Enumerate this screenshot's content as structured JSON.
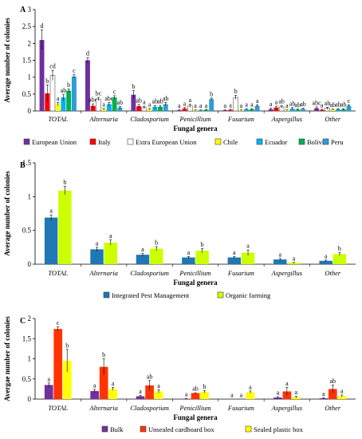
{
  "figure": {
    "y_axis_label": "Average number of colonies",
    "x_axis_label": "Fungal genera"
  },
  "chart_data": [
    {
      "panel": "A",
      "type": "bar",
      "categories": [
        "TOTAL",
        "Alternaria",
        "Cladosporium",
        "Penicillium",
        "Fusarium",
        "Aspergillus",
        "Other"
      ],
      "ylabel": "Average number of colonies",
      "xlabel": "Fungal genera",
      "ylim": [
        0,
        3
      ],
      "yticks": [
        0,
        0.5,
        1,
        1.5,
        2,
        2.5,
        3
      ],
      "legend_position": "bottom",
      "series": [
        {
          "name": "European Union",
          "color": "#7030a0",
          "values": [
            2.1,
            1.5,
            0.48,
            0.02,
            0.02,
            0.05,
            0.08
          ],
          "errors": [
            0.3,
            0.08,
            0.12,
            0.01,
            0.01,
            0.03,
            0.04
          ],
          "letters": [
            "d",
            "d",
            "b",
            "a",
            "a",
            "a",
            "abc"
          ]
        },
        {
          "name": "Italy",
          "color": "#ff0000",
          "values": [
            0.52,
            0.15,
            0.14,
            0.07,
            0.03,
            0.1,
            0.03
          ],
          "errors": [
            0.25,
            0.06,
            0.05,
            0.03,
            0.02,
            0.04,
            0.02
          ],
          "letters": [
            "b",
            "abc",
            "ab",
            "a",
            "a",
            "a",
            "a"
          ]
        },
        {
          "name": "Extra European Union",
          "color": "#ffffff",
          "values": [
            1.05,
            0.35,
            0.1,
            0.15,
            0.4,
            0.12,
            0.08
          ],
          "errors": [
            0.15,
            0.05,
            0.04,
            0.05,
            0.06,
            0.04,
            0.03
          ],
          "letters": [
            "cd",
            "bc",
            "a",
            "a",
            "b",
            "ab",
            "ab"
          ]
        },
        {
          "name": "Chile",
          "color": "#ffff00",
          "values": [
            0.2,
            0.05,
            0.05,
            0.02,
            0.02,
            0.02,
            0.04
          ],
          "errors": [
            0.05,
            0.02,
            0.02,
            0.01,
            0.01,
            0.01,
            0.02
          ],
          "letters": [
            "a",
            "a",
            "a",
            "a",
            "a",
            "a",
            "ab"
          ]
        },
        {
          "name": "Ecuador",
          "color": "#00b0f0",
          "values": [
            0.4,
            0.2,
            0.12,
            0.02,
            0.05,
            0.07,
            0.05
          ],
          "errors": [
            0.08,
            0.05,
            0.04,
            0.01,
            0.02,
            0.03,
            0.02
          ],
          "letters": [
            "ab",
            "abc",
            "ab",
            "a",
            "a",
            "ab",
            "ab"
          ]
        },
        {
          "name": "Bolivia",
          "color": "#00b050",
          "values": [
            0.6,
            0.4,
            0.12,
            0.03,
            0.05,
            0.04,
            0.05
          ],
          "errors": [
            0.05,
            0.05,
            0.04,
            0.01,
            0.02,
            0.02,
            0.02
          ],
          "letters": [
            "b",
            "c",
            "ab",
            "a",
            "a",
            "ab",
            "ab"
          ]
        },
        {
          "name": "Peru",
          "color": "#2e9cd6",
          "values": [
            1.02,
            0.1,
            0.2,
            0.35,
            0.15,
            0.06,
            0.15
          ],
          "errors": [
            0.05,
            0.03,
            0.05,
            0.03,
            0.03,
            0.02,
            0.03
          ],
          "letters": [
            "c",
            "ab",
            "ab",
            "b",
            "a",
            "ab",
            "c"
          ]
        }
      ]
    },
    {
      "panel": "B",
      "type": "bar",
      "categories": [
        "TOTAL",
        "Alternaria",
        "Cladosporium",
        "Penicillium",
        "Fusarium",
        "Aspergillus",
        "Other"
      ],
      "ylabel": "Average number of colonies",
      "xlabel": "Fungal genera",
      "ylim": [
        0,
        1.5
      ],
      "yticks": [
        0,
        0.5,
        1,
        1.5
      ],
      "legend_position": "bottom",
      "series": [
        {
          "name": "Integrated Pest Management",
          "color": "#1f77b4",
          "values": [
            0.69,
            0.22,
            0.14,
            0.1,
            0.1,
            0.07,
            0.05
          ],
          "errors": [
            0.04,
            0.03,
            0.02,
            0.015,
            0.015,
            0.015,
            0.01
          ],
          "letters": [
            "a",
            "a",
            "a",
            "a",
            "a",
            "a",
            "a"
          ]
        },
        {
          "name": "Organic farming",
          "color": "#ccff00",
          "values": [
            1.09,
            0.32,
            0.23,
            0.2,
            0.17,
            0.02,
            0.15
          ],
          "errors": [
            0.06,
            0.04,
            0.03,
            0.03,
            0.04,
            0.005,
            0.02
          ],
          "letters": [
            "b",
            "a",
            "b",
            "b",
            "a",
            "a",
            "b"
          ]
        }
      ]
    },
    {
      "panel": "C",
      "type": "bar",
      "categories": [
        "TOTAL",
        "Alternaria",
        "Cladosporium",
        "Penicillium",
        "Fusarium",
        "Aspergillus",
        "Other"
      ],
      "ylabel": "Avergae number of colonies",
      "xlabel": "Fungal genera",
      "ylim": [
        0,
        2
      ],
      "yticks": [
        0,
        0.5,
        1,
        1.5,
        2
      ],
      "legend_position": "bottom",
      "series": [
        {
          "name": "Bulk",
          "color": "#7030a0",
          "values": [
            0.35,
            0.2,
            0.07,
            0.01,
            0.0,
            0.04,
            0.02
          ],
          "errors": [
            0.05,
            0.04,
            0.02,
            0.005,
            0.0,
            0.02,
            0.01
          ],
          "letters": [
            "a",
            "a",
            "a",
            "a",
            "a",
            "a",
            "a"
          ]
        },
        {
          "name": "Unsealed cardboard box",
          "color": "#ff3300",
          "values": [
            1.74,
            0.8,
            0.34,
            0.15,
            0.0,
            0.19,
            0.25
          ],
          "errors": [
            0.05,
            0.2,
            0.12,
            0.005,
            0.0,
            0.1,
            0.1
          ],
          "letters": [
            "c",
            "b",
            "ab",
            "ab",
            "a",
            "a",
            "ab"
          ]
        },
        {
          "name": "Sealed plastic box",
          "color": "#ffff00",
          "values": [
            0.95,
            0.25,
            0.19,
            0.18,
            0.17,
            0.05,
            0.08
          ],
          "errors": [
            0.28,
            0.04,
            0.04,
            0.03,
            0.03,
            0.02,
            0.02
          ],
          "letters": [
            "b",
            "a",
            "a",
            "b",
            "a",
            "a",
            "a"
          ]
        }
      ]
    }
  ]
}
